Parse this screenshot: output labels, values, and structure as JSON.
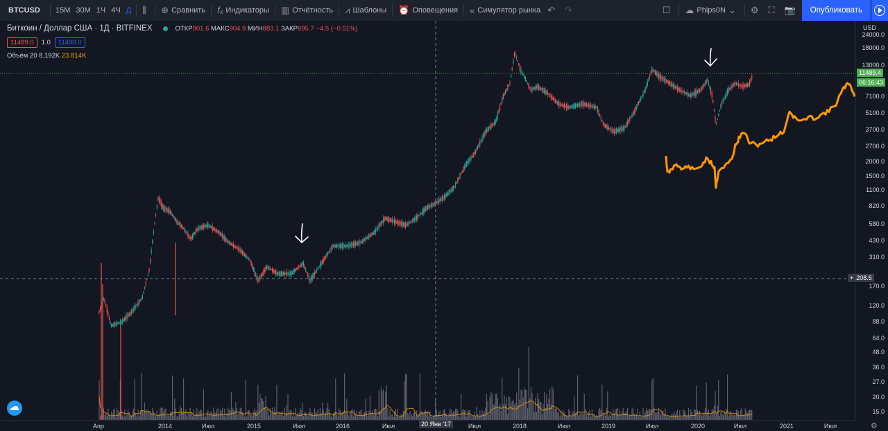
{
  "toolbar": {
    "symbol": "BTCUSD",
    "timeframes": [
      "15М",
      "30М",
      "1Ч",
      "4Ч",
      "Д"
    ],
    "compare_label": "Сравнить",
    "indicators_label": "Индикаторы",
    "financials_label": "Отчётность",
    "templates_label": "Шаблоны",
    "alerts_label": "Оповещения",
    "replay_label": "Симулятор рынка",
    "layout_name": "Phips0N",
    "publish_label": "Опубликовать"
  },
  "legend": {
    "title": "Биткоин / Доллар США · 1Д · BITFINEX",
    "open_label": "ОТКР",
    "open_value": "901.6",
    "high_label": "МАКС",
    "high_value": "904.9",
    "low_label": "МИН",
    "low_value": "883.1",
    "close_label": "ЗАКР",
    "close_value": "895.7 −4.5 (−0.51%)",
    "sell_price": "11489.0",
    "qty": "1.0",
    "buy_price": "11490.0",
    "volume_label": "Объём 20",
    "volume_value": "8.192K",
    "volume_ma": "23.814K"
  },
  "price_axis": {
    "unit": "USD",
    "ticks": [
      "24000.0",
      "18000.0",
      "13000.0",
      "7100.0",
      "5100.0",
      "3700.0",
      "2700.0",
      "2000.0",
      "1500.0",
      "1100.0",
      "820.0",
      "580.0",
      "430.0",
      "310.0",
      "170.0",
      "120.0",
      "88.0",
      "64.0",
      "48.0",
      "36.0",
      "27.0",
      "20.0",
      "15.0"
    ],
    "current_price": "11489.4",
    "countdown": "06:16:43",
    "crosshair_price": "208.5"
  },
  "time_axis": {
    "ticks": [
      "Апр",
      "2014",
      "Июл",
      "2015",
      "Июл",
      "2016",
      "Июл",
      "Июл",
      "2018",
      "Июл",
      "2019",
      "Июл",
      "2020",
      "Июл",
      "2021",
      "Июл"
    ],
    "crosshair_date": "20 Янв '17"
  },
  "colors": {
    "background": "#131722",
    "up": "#26a69a",
    "down": "#ef5350",
    "overlay": "#ff9800",
    "accent": "#2962ff",
    "price_line": "#4caf50"
  }
}
